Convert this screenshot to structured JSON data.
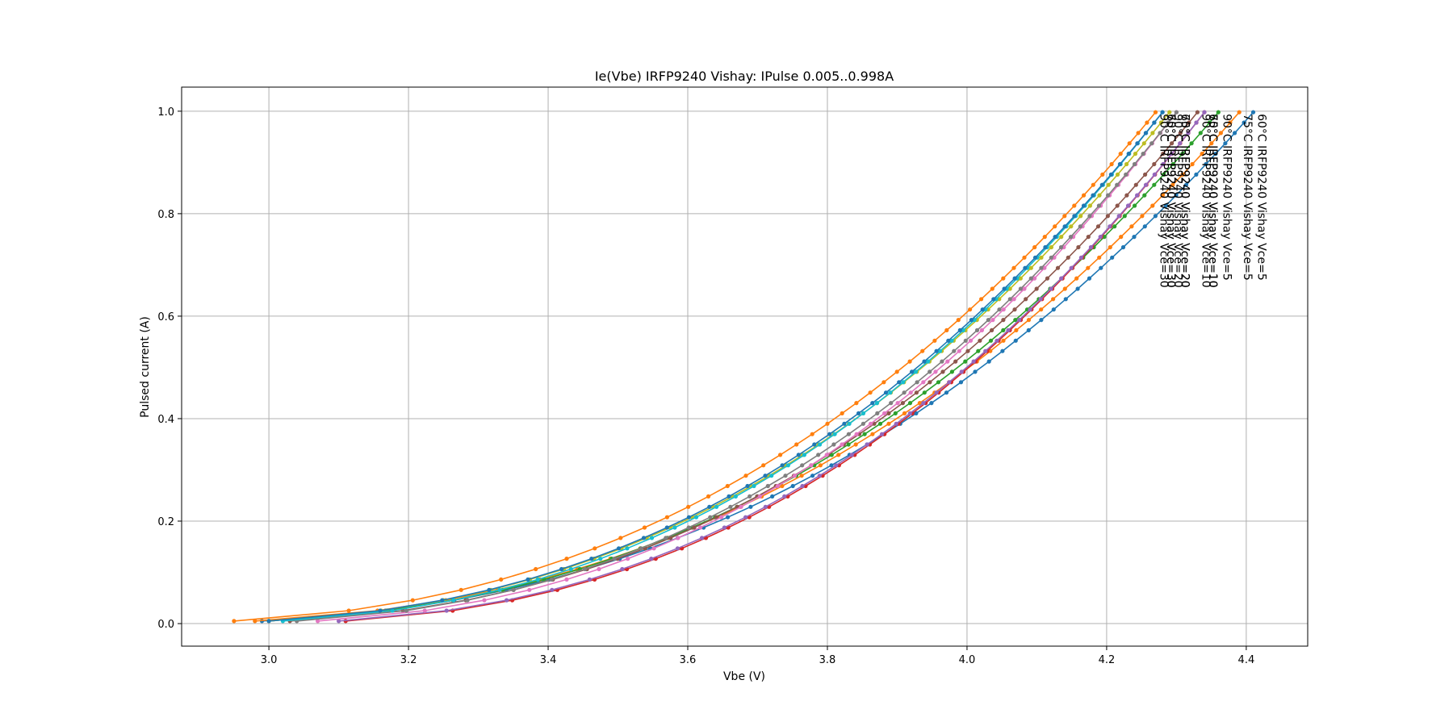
{
  "chart_data": {
    "type": "line",
    "title": "Ie(Vbe) IRFP9240 Vishay: IPulse 0.005..0.998A",
    "xlabel": "Vbe (V)",
    "ylabel": "Pulsed current (A)",
    "xlim": [
      2.875,
      4.488
    ],
    "ylim": [
      -0.044,
      1.047
    ],
    "xticks": [
      "3.0",
      "3.2",
      "3.4",
      "3.6",
      "3.8",
      "4.0",
      "4.2",
      "4.4"
    ],
    "yticks": [
      "0.0",
      "0.2",
      "0.4",
      "0.6",
      "0.8",
      "1.0"
    ],
    "grid": true,
    "legend": "none",
    "series": [
      {
        "name": "60°C IRFP9240 Vishay Vce=5",
        "color": "#1f77b4",
        "v0": 2.99,
        "v1": 4.41
      },
      {
        "name": "75°C IRFP9240 Vishay Vce=5",
        "color": "#ff7f0e",
        "v0": 2.98,
        "v1": 4.39
      },
      {
        "name": "90°C IRFP9240 Vishay Vce=5",
        "color": "#2ca02c",
        "v0": 3.0,
        "v1": 4.36
      },
      {
        "name": "60°C IRFP9240 Vishay Vce=10",
        "color": "#d62728",
        "v0": 3.11,
        "v1": 4.34
      },
      {
        "name": "75°C IRFP9240 Vishay Vce=10",
        "color": "#9467bd",
        "v0": 3.1,
        "v1": 4.34
      },
      {
        "name": "90°C IRFP9240 Vishay Vce=10",
        "color": "#8c564b",
        "v0": 3.03,
        "v1": 4.33
      },
      {
        "name": "60°C IRFP9240 Vishay Vce=20",
        "color": "#e377c2",
        "v0": 3.07,
        "v1": 4.3
      },
      {
        "name": "75°C IRFP9240 Vishay Vce=20",
        "color": "#7f7f7f",
        "v0": 3.04,
        "v1": 4.3
      },
      {
        "name": "90°C IRFP9240 Vishay Vce=20",
        "color": "#bcbd22",
        "v0": 3.0,
        "v1": 4.29
      },
      {
        "name": "60°C IRFP9240 Vishay Vce=30",
        "color": "#17becf",
        "v0": 3.02,
        "v1": 4.28
      },
      {
        "name": "75°C IRFP9240 Vishay Vce=30",
        "color": "#1f77b4",
        "v0": 3.0,
        "v1": 4.28
      },
      {
        "name": "90°C IRFP9240 Vishay Vce=30",
        "color": "#ff7f0e",
        "v0": 2.95,
        "v1": 4.27
      }
    ]
  }
}
